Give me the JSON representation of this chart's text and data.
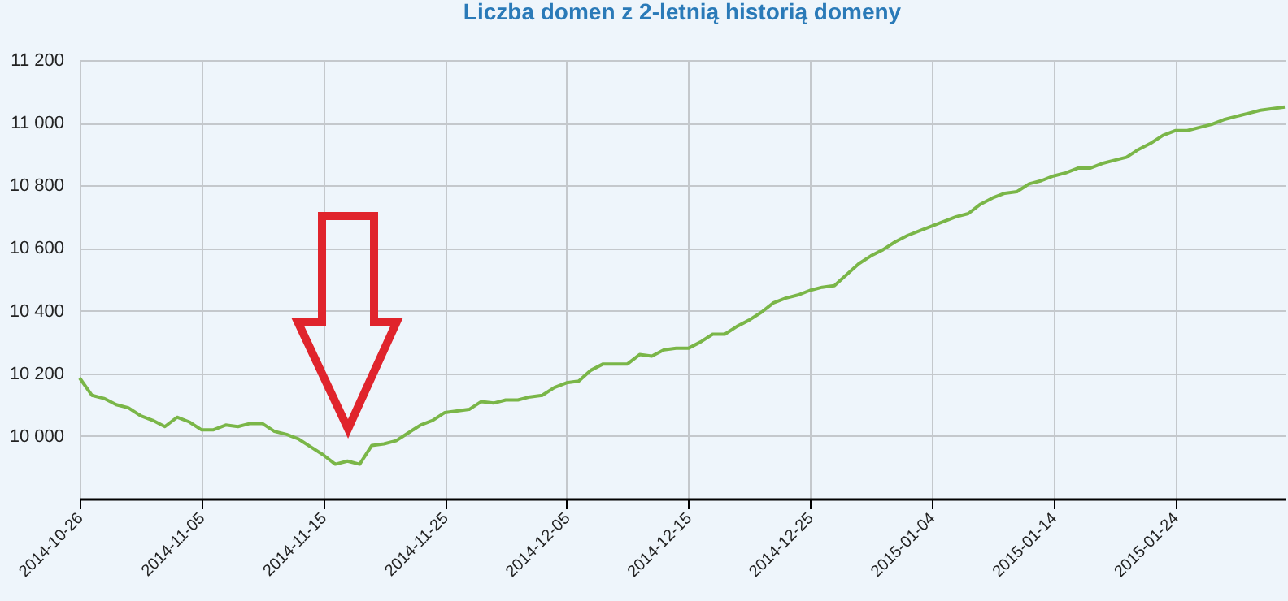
{
  "chart_data": {
    "type": "line",
    "title": "Liczba domen z 2-letnią historią domeny",
    "x": [
      "2014-10-26",
      "2014-10-27",
      "2014-10-28",
      "2014-10-29",
      "2014-10-30",
      "2014-10-31",
      "2014-11-01",
      "2014-11-02",
      "2014-11-03",
      "2014-11-04",
      "2014-11-05",
      "2014-11-06",
      "2014-11-07",
      "2014-11-08",
      "2014-11-09",
      "2014-11-10",
      "2014-11-11",
      "2014-11-12",
      "2014-11-13",
      "2014-11-14",
      "2014-11-15",
      "2014-11-16",
      "2014-11-17",
      "2014-11-18",
      "2014-11-19",
      "2014-11-20",
      "2014-11-21",
      "2014-11-22",
      "2014-11-23",
      "2014-11-24",
      "2014-11-25",
      "2014-11-26",
      "2014-11-27",
      "2014-11-28",
      "2014-11-29",
      "2014-11-30",
      "2014-12-01",
      "2014-12-02",
      "2014-12-03",
      "2014-12-04",
      "2014-12-05",
      "2014-12-06",
      "2014-12-07",
      "2014-12-08",
      "2014-12-09",
      "2014-12-10",
      "2014-12-11",
      "2014-12-12",
      "2014-12-13",
      "2014-12-14",
      "2014-12-15",
      "2014-12-16",
      "2014-12-17",
      "2014-12-18",
      "2014-12-19",
      "2014-12-20",
      "2014-12-21",
      "2014-12-22",
      "2014-12-23",
      "2014-12-24",
      "2014-12-25",
      "2014-12-26",
      "2014-12-27",
      "2014-12-28",
      "2014-12-29",
      "2014-12-30",
      "2014-12-31",
      "2015-01-01",
      "2015-01-02",
      "2015-01-03",
      "2015-01-04",
      "2015-01-05",
      "2015-01-06",
      "2015-01-07",
      "2015-01-08",
      "2015-01-09",
      "2015-01-10",
      "2015-01-11",
      "2015-01-12",
      "2015-01-13",
      "2015-01-14",
      "2015-01-15",
      "2015-01-16",
      "2015-01-17",
      "2015-01-18",
      "2015-01-19",
      "2015-01-20",
      "2015-01-21",
      "2015-01-22",
      "2015-01-23",
      "2015-01-24",
      "2015-01-25",
      "2015-01-26",
      "2015-01-27",
      "2015-01-28",
      "2015-01-29",
      "2015-01-30",
      "2015-01-31",
      "2015-02-01",
      "2015-02-02"
    ],
    "series": [
      {
        "color": "#7ab648",
        "values": [
          10185,
          10130,
          10120,
          10100,
          10090,
          10065,
          10050,
          10030,
          10060,
          10045,
          10020,
          10020,
          10035,
          10030,
          10040,
          10040,
          10015,
          10005,
          9990,
          9965,
          9940,
          9910,
          9920,
          9910,
          9970,
          9975,
          9985,
          10010,
          10035,
          10050,
          10075,
          10080,
          10085,
          10110,
          10105,
          10115,
          10115,
          10125,
          10130,
          10155,
          10170,
          10175,
          10210,
          10230,
          10230,
          10230,
          10260,
          10255,
          10275,
          10280,
          10280,
          10300,
          10325,
          10325,
          10350,
          10370,
          10395,
          10425,
          10440,
          10450,
          10465,
          10475,
          10480,
          10515,
          10550,
          10575,
          10595,
          10620,
          10640,
          10655,
          10670,
          10685,
          10700,
          10710,
          10740,
          10760,
          10775,
          10780,
          10805,
          10815,
          10830,
          10840,
          10855,
          10855,
          10870,
          10880,
          10890,
          10915,
          10935,
          10960,
          10975,
          10975,
          10985,
          10995,
          11010,
          11020,
          11030,
          11040,
          11045,
          11050
        ]
      }
    ],
    "xlim": [
      "2014-10-26",
      "2015-02-02"
    ],
    "xticks": [
      "2014-10-26",
      "2014-11-05",
      "2014-11-15",
      "2014-11-25",
      "2014-12-05",
      "2014-12-15",
      "2014-12-25",
      "2015-01-04",
      "2015-01-14",
      "2015-01-24"
    ],
    "ylim": [
      9800,
      11200
    ],
    "yticks": [
      {
        "value": 10000,
        "label": "10 000"
      },
      {
        "value": 10200,
        "label": "10 200"
      },
      {
        "value": 10400,
        "label": "10 400"
      },
      {
        "value": 10600,
        "label": "10 600"
      },
      {
        "value": 10800,
        "label": "10 800"
      },
      {
        "value": 11000,
        "label": "11 000"
      },
      {
        "value": 11200,
        "label": "11 200"
      }
    ],
    "grid": true
  }
}
